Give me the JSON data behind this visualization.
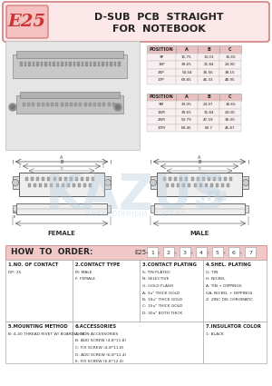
{
  "title_code": "E25",
  "bg_color": "#ffffff",
  "header_bg": "#fce8e8",
  "header_border": "#d08080",
  "table_header_bg": "#f0c8c8",
  "female_label": "FEMALE",
  "male_label": "MALE",
  "how_to_order_label": "HOW  TO  ORDER:",
  "order_code": "E25-",
  "order_numbers": [
    "1",
    "2",
    "3",
    "4",
    "5",
    "6",
    "7"
  ],
  "table1_headers": [
    "POSITION",
    "A",
    "B",
    "C"
  ],
  "table1_rows": [
    [
      "9P",
      "31.75",
      "13.03",
      "15.65"
    ],
    [
      "15P",
      "39.65",
      "21.84",
      "24.90"
    ],
    [
      "25P",
      "53.04",
      "35.56",
      "38.15"
    ],
    [
      "37P",
      "69.85",
      "46.33",
      "48.95"
    ]
  ],
  "table2_headers": [
    "POSITION",
    "A",
    "B",
    "C"
  ],
  "table2_rows": [
    [
      "9M",
      "33.05",
      "24.97",
      "18.65"
    ],
    [
      "15M",
      "39.65",
      "31.84",
      "24.00"
    ],
    [
      "25M",
      "53.79",
      "47.59",
      "30.00"
    ],
    [
      "37M",
      "69.45",
      "60.7",
      "46.87"
    ]
  ],
  "spec_sections": [
    {
      "title": "1.NO. OF CONTACT",
      "content": "DP: 25"
    },
    {
      "title": "2.CONTACT TYPE",
      "content": "M: MALE\nF: FEMALE"
    },
    {
      "title": "3.CONTACT PLATING",
      "content": "S: TIN PLATED\nN: SELECTIVE\nG: GOLD FLASH\nA: 3u\" THICK GOLD\nB: 10u\" THICK GOLD\nC: 15u\" THICK GOLD\nD: 30u\" BOTH THICK"
    },
    {
      "title": "4.SHEL. PLATING",
      "content": "G: TIN\nH: NICKEL\nA: TIN + DIPPINGS\nGA: NICKEL + DIPPINGS\nZ: ZINC DIE CHROMATIC"
    }
  ],
  "spec_sections2": [
    {
      "title": "5.MOUNTING METHOD",
      "content": "B: 4-40 THREAD RIVET W/ BOARDLOCK"
    },
    {
      "title": "6.ACCESSORIES",
      "content": "A: NON ACCESSORIES\nB: ADD SCREW (4.8*11.8)\nC: FIX SCREW (4.8*11.8)\nD: ADD SCREW (6.8*12.4)\nE: FIX SCREW (6.8*12.4)"
    },
    {
      "title": "7.INSULATOR COLOR",
      "content": "1: BLACK"
    }
  ],
  "watermark_text": "KAZUS",
  "watermark_sub": ".ru",
  "watermark_cyrillic": "электронный  портал"
}
